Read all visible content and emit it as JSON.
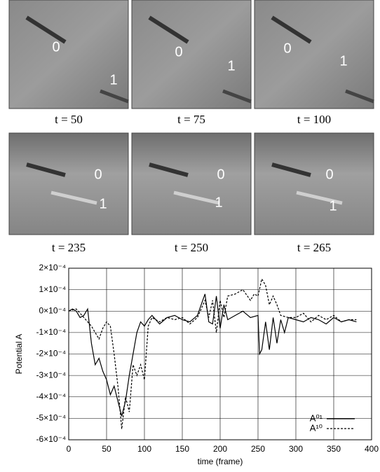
{
  "panels": [
    {
      "caption": "t = 50",
      "labels": [
        "0",
        "1"
      ]
    },
    {
      "caption": "t = 75",
      "labels": [
        "0",
        "1"
      ]
    },
    {
      "caption": "t = 100",
      "labels": [
        "0",
        "1"
      ]
    },
    {
      "caption": "t = 235",
      "labels": [
        "0",
        "1"
      ]
    },
    {
      "caption": "t = 250",
      "labels": [
        "0",
        "1"
      ]
    },
    {
      "caption": "t = 265",
      "labels": [
        "0",
        "1"
      ]
    }
  ],
  "chart_data": {
    "type": "line",
    "xlabel": "time (frame)",
    "ylabel": "Potential A",
    "xlim": [
      0,
      400
    ],
    "xticks": [
      0,
      50,
      100,
      150,
      200,
      250,
      300,
      350,
      400
    ],
    "ylim": [
      -0.0006,
      0.0002
    ],
    "yticks": [
      {
        "value": 0.0002,
        "label": "2×10⁻⁴"
      },
      {
        "value": 0.0001,
        "label": "1×10⁻⁴"
      },
      {
        "value": 0,
        "label": "0×10⁻⁴"
      },
      {
        "value": -0.0001,
        "label": "-1×10⁻⁴"
      },
      {
        "value": -0.0002,
        "label": "-2×10⁻⁴"
      },
      {
        "value": -0.0003,
        "label": "-3×10⁻⁴"
      },
      {
        "value": -0.0004,
        "label": "-4×10⁻⁴"
      },
      {
        "value": -0.0005,
        "label": "-5×10⁻⁴"
      },
      {
        "value": -0.0006,
        "label": "-6×10⁻⁴"
      }
    ],
    "grid": true,
    "legend": "lower right",
    "series": [
      {
        "name": "A⁰¹",
        "color": "#000000",
        "dash": "solid",
        "x": [
          0,
          5,
          10,
          15,
          20,
          25,
          30,
          35,
          40,
          45,
          50,
          55,
          60,
          65,
          70,
          75,
          80,
          85,
          90,
          95,
          100,
          105,
          110,
          120,
          130,
          140,
          150,
          160,
          170,
          175,
          180,
          185,
          190,
          195,
          200,
          205,
          210,
          220,
          230,
          240,
          250,
          252,
          255,
          260,
          265,
          270,
          275,
          280,
          285,
          290,
          300,
          310,
          320,
          330,
          340,
          350,
          360,
          370,
          380
        ],
        "values": [
          0,
          1e-05,
          0,
          -3e-05,
          -2e-05,
          1e-05,
          -0.00015,
          -0.00025,
          -0.00022,
          -0.00028,
          -0.00032,
          -0.00039,
          -0.00035,
          -0.00042,
          -0.00049,
          -0.00042,
          -0.0003,
          -0.0002,
          -0.0001,
          -5e-05,
          -7e-05,
          -4e-05,
          -2e-05,
          -6e-05,
          -3e-05,
          -2e-05,
          -4e-05,
          -5e-05,
          -2e-05,
          3e-05,
          8e-05,
          -5e-05,
          -6e-05,
          7e-05,
          -8e-05,
          3e-05,
          -4e-05,
          -2e-05,
          0,
          -3e-05,
          -2e-05,
          -0.0002,
          -0.00018,
          -5e-05,
          -0.00018,
          -3e-05,
          -0.00015,
          -4e-05,
          -0.0001,
          -3e-05,
          -4e-05,
          -5e-05,
          -3e-05,
          -4e-05,
          -6e-05,
          -3e-05,
          -5e-05,
          -4e-05,
          -5e-05
        ]
      },
      {
        "name": "A¹⁰",
        "color": "#000000",
        "dash": "dashed",
        "x": [
          0,
          10,
          20,
          30,
          40,
          45,
          50,
          55,
          60,
          65,
          70,
          75,
          80,
          85,
          90,
          95,
          100,
          105,
          110,
          120,
          130,
          140,
          150,
          160,
          170,
          180,
          185,
          190,
          195,
          200,
          205,
          210,
          220,
          230,
          240,
          245,
          250,
          255,
          260,
          265,
          270,
          275,
          280,
          290,
          300,
          310,
          320,
          330,
          340,
          350,
          360,
          370,
          380
        ],
        "values": [
          0,
          1e-05,
          -3e-05,
          -7e-05,
          -0.00013,
          -8e-05,
          -5e-05,
          -7e-05,
          -0.0002,
          -0.00035,
          -0.00055,
          -0.0004,
          -0.00047,
          -0.00025,
          -0.0003,
          -0.00025,
          -0.00032,
          -7e-05,
          -3e-05,
          -5e-05,
          -3e-05,
          -4e-05,
          -3e-05,
          -6e-05,
          -3e-05,
          5e-05,
          -3e-05,
          5e-05,
          -0.0001,
          5e-05,
          -3e-05,
          7e-05,
          8e-05,
          0.0001,
          5e-05,
          8e-05,
          7e-05,
          0.00015,
          0.00012,
          3e-05,
          7e-05,
          3e-05,
          -2e-05,
          -3e-05,
          -3e-05,
          -1e-05,
          -5e-05,
          -2e-05,
          -4e-05,
          -2e-05,
          -5e-05,
          -4e-05,
          -4e-05
        ]
      }
    ]
  }
}
